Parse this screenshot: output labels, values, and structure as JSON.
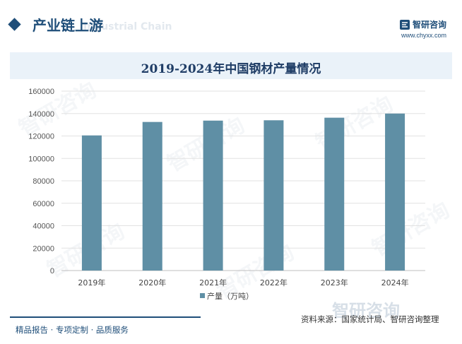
{
  "header": {
    "section_title": "产业链上游",
    "ghost_text": "Industrial Chain",
    "brand_name": "智研咨询",
    "brand_url": "www.chyxx.com"
  },
  "colors": {
    "accent": "#1f4e79",
    "bar": "#5f8fa5",
    "title_band": "#eaf2f9"
  },
  "chart_data": {
    "type": "bar",
    "title": "2019-2024年中国钢材产量情况",
    "categories": [
      "2019年",
      "2020年",
      "2021年",
      "2022年",
      "2023年",
      "2024年"
    ],
    "series": [
      {
        "name": "产量（万吨）",
        "values": [
          120500,
          132500,
          133700,
          134000,
          136300,
          140000
        ]
      }
    ],
    "ylim": [
      0,
      160000
    ],
    "yticks": [
      0,
      20000,
      40000,
      60000,
      80000,
      100000,
      120000,
      140000,
      160000
    ],
    "grid": true,
    "legend": "bottom-center"
  },
  "footer": {
    "left_text": "精品报告 · 专项定制 · 品质服务",
    "source_text": "资料来源：国家统计局、智研咨询整理",
    "big_brand": "智研咨询"
  }
}
